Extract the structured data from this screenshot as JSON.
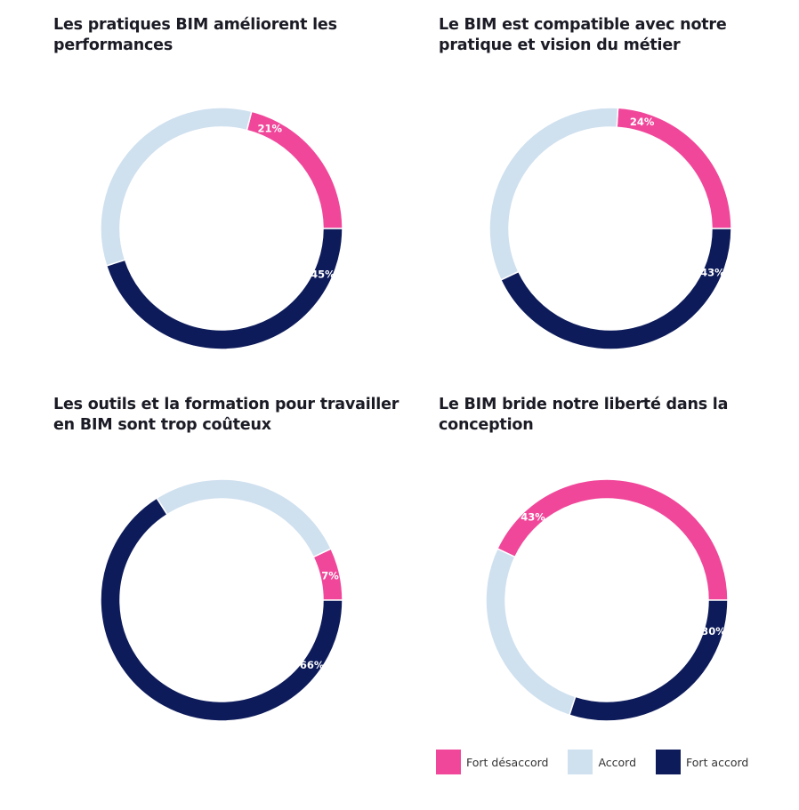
{
  "chart_data": [
    {
      "type": "pie",
      "variant": "donut",
      "title": "Les pratiques BIM améliorent les performances",
      "slices": [
        {
          "name": "Fort désaccord",
          "value": 21,
          "label": "21%"
        },
        {
          "name": "Accord",
          "value": 34,
          "label": ""
        },
        {
          "name": "Fort accord",
          "value": 45,
          "label": "45%"
        }
      ]
    },
    {
      "type": "pie",
      "variant": "donut",
      "title": "Le BIM est compatible avec notre pratique et vision du métier",
      "slices": [
        {
          "name": "Fort désaccord",
          "value": 24,
          "label": "24%"
        },
        {
          "name": "Accord",
          "value": 33,
          "label": ""
        },
        {
          "name": "Fort accord",
          "value": 43,
          "label": "43%"
        }
      ]
    },
    {
      "type": "pie",
      "variant": "donut",
      "title": "Les outils et la formation pour travailler en BIM sont trop coûteux",
      "slices": [
        {
          "name": "Fort désaccord",
          "value": 7,
          "label": "7%"
        },
        {
          "name": "Accord",
          "value": 27,
          "label": ""
        },
        {
          "name": "Fort accord",
          "value": 66,
          "label": "66%"
        }
      ]
    },
    {
      "type": "pie",
      "variant": "donut",
      "title": "Le BIM bride notre liberté dans la conception",
      "slices": [
        {
          "name": "Fort désaccord",
          "value": 43,
          "label": "43%"
        },
        {
          "name": "Accord",
          "value": 27,
          "label": ""
        },
        {
          "name": "Fort accord",
          "value": 30,
          "label": "30%"
        }
      ]
    }
  ],
  "legend": {
    "items": [
      {
        "name": "Fort désaccord",
        "color": "#f0479a"
      },
      {
        "name": "Accord",
        "color": "#cfe0ef"
      },
      {
        "name": "Fort accord",
        "color": "#0d1b5a"
      }
    ]
  }
}
